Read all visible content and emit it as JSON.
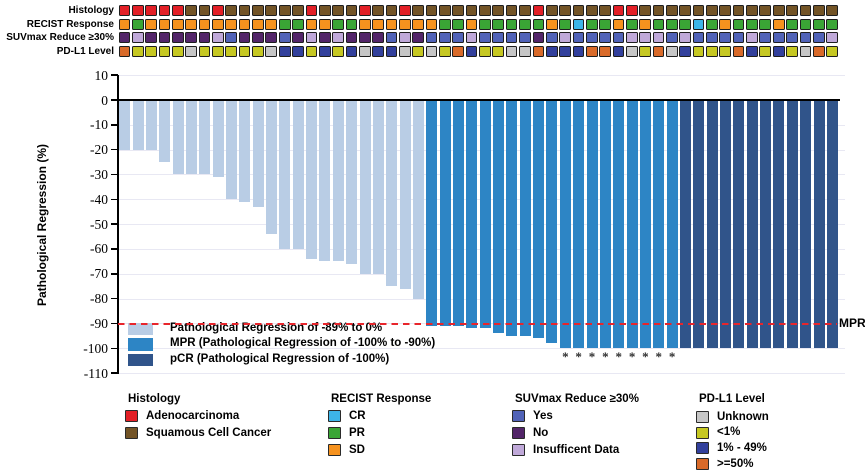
{
  "palette": {
    "adeno": "#e31f26",
    "squam": "#735426",
    "sd": "#f6921e",
    "pr": "#3aa535",
    "cr": "#3db5e8",
    "yes": "#5163b8",
    "no": "#532569",
    "insuf": "#c0a9d9",
    "unknown": "#c6c6c6",
    "lt1": "#c6c822",
    "p1_49": "#32409c",
    "ge50": "#d96a29",
    "bar_light": "#b9cde5",
    "bar_mpr": "#2d85c5",
    "bar_pcr": "#30548a",
    "ref_line": "#e8252b",
    "grid": "#e8e8f3",
    "axis": "#000000"
  },
  "annotation": {
    "tracks": [
      {
        "label": "Histology",
        "map": {
          "A": "adeno",
          "S": "squam"
        },
        "cells": "AAAAASSASSSSSSASSSASSASSSSSSSSSASSSSSAASSSSSSSSSSSSSSS"
      },
      {
        "label": "RECIST Response",
        "map": {
          "D": "sd",
          "P": "pr",
          "C": "cr"
        },
        "cells": "DPDDDDDDDDDDPPDDPPDDDDDDPPDPPPPPDPCPPDPDPPPCPDPPPDPPPP"
      },
      {
        "label": "SUVmax Reduce ≥30%",
        "map": {
          "Y": "yes",
          "N": "no",
          "I": "insuf"
        },
        "cells": "NINNNNNIYNNNYNININNNYINYYYIYYYYNYIYYYYIIIYIYYYYIYYYYYI"
      },
      {
        "label": "PD-L1 Level",
        "map": {
          "U": "unknown",
          "L": "lt1",
          "M": "p1_49",
          "H": "ge50"
        },
        "cells": "HLLLLULLLLLUMMLMLMUMMULULHMLLUUHMMMHHMULHUMLLLHMLMLUHL"
      }
    ]
  },
  "chart_data": {
    "type": "bar",
    "title": "",
    "xlabel": "",
    "ylabel": "Pathological Regression (%)",
    "ylim": [
      -110,
      10
    ],
    "yticks": [
      10,
      0,
      -10,
      -20,
      -30,
      -40,
      -50,
      -60,
      -70,
      -80,
      -90,
      -100,
      -110
    ],
    "grid": "horizontal-light",
    "reference_line": {
      "value": -90,
      "label": "MPR",
      "style": "red-dashed"
    },
    "asterisk_note": "asterisk markers under nine MPR bars reaching -100%",
    "bars": [
      {
        "v": -20,
        "c": "light"
      },
      {
        "v": -20,
        "c": "light"
      },
      {
        "v": -20,
        "c": "light"
      },
      {
        "v": -25,
        "c": "light"
      },
      {
        "v": -30,
        "c": "light"
      },
      {
        "v": -30,
        "c": "light"
      },
      {
        "v": -30,
        "c": "light"
      },
      {
        "v": -31,
        "c": "light"
      },
      {
        "v": -40,
        "c": "light"
      },
      {
        "v": -41,
        "c": "light"
      },
      {
        "v": -43,
        "c": "light"
      },
      {
        "v": -54,
        "c": "light"
      },
      {
        "v": -60,
        "c": "light"
      },
      {
        "v": -60,
        "c": "light"
      },
      {
        "v": -64,
        "c": "light"
      },
      {
        "v": -65,
        "c": "light"
      },
      {
        "v": -65,
        "c": "light"
      },
      {
        "v": -66,
        "c": "light"
      },
      {
        "v": -70,
        "c": "light"
      },
      {
        "v": -70,
        "c": "light"
      },
      {
        "v": -75,
        "c": "light"
      },
      {
        "v": -76,
        "c": "light"
      },
      {
        "v": -80,
        "c": "light"
      },
      {
        "v": -91,
        "c": "mpr"
      },
      {
        "v": -91,
        "c": "mpr"
      },
      {
        "v": -91,
        "c": "mpr"
      },
      {
        "v": -92,
        "c": "mpr"
      },
      {
        "v": -92,
        "c": "mpr"
      },
      {
        "v": -94,
        "c": "mpr"
      },
      {
        "v": -95,
        "c": "mpr"
      },
      {
        "v": -95,
        "c": "mpr"
      },
      {
        "v": -96,
        "c": "mpr"
      },
      {
        "v": -98,
        "c": "mpr"
      },
      {
        "v": -100,
        "c": "mpr",
        "m": "*"
      },
      {
        "v": -100,
        "c": "mpr",
        "m": "*"
      },
      {
        "v": -100,
        "c": "mpr",
        "m": "*"
      },
      {
        "v": -100,
        "c": "mpr",
        "m": "*"
      },
      {
        "v": -100,
        "c": "mpr",
        "m": "*"
      },
      {
        "v": -100,
        "c": "mpr",
        "m": "*"
      },
      {
        "v": -100,
        "c": "mpr",
        "m": "*"
      },
      {
        "v": -100,
        "c": "mpr",
        "m": "*"
      },
      {
        "v": -100,
        "c": "mpr",
        "m": "*"
      },
      {
        "v": -100,
        "c": "pcr"
      },
      {
        "v": -100,
        "c": "pcr"
      },
      {
        "v": -100,
        "c": "pcr"
      },
      {
        "v": -100,
        "c": "pcr"
      },
      {
        "v": -100,
        "c": "pcr"
      },
      {
        "v": -100,
        "c": "pcr"
      },
      {
        "v": -100,
        "c": "pcr"
      },
      {
        "v": -100,
        "c": "pcr"
      },
      {
        "v": -100,
        "c": "pcr"
      },
      {
        "v": -100,
        "c": "pcr"
      },
      {
        "v": -100,
        "c": "pcr"
      },
      {
        "v": -100,
        "c": "pcr"
      }
    ],
    "legend": [
      {
        "key": "bar_light",
        "label": "Pathological Regression of -89% to 0%"
      },
      {
        "key": "bar_mpr",
        "label": "MPR (Pathological Regression of -100% to -90%)"
      },
      {
        "key": "bar_pcr",
        "label": "pCR (Pathological Regression of -100%)"
      }
    ]
  },
  "bottom_legend": {
    "groups": [
      {
        "title": "Histology",
        "items": [
          {
            "key": "adeno",
            "label": "Adenocarcinoma"
          },
          {
            "key": "squam",
            "label": "Squamous Cell Cancer"
          }
        ]
      },
      {
        "title": "RECIST Response",
        "items": [
          {
            "key": "cr",
            "label": "CR"
          },
          {
            "key": "pr",
            "label": "PR"
          },
          {
            "key": "sd",
            "label": "SD"
          }
        ]
      },
      {
        "title": "SUVmax Reduce ≥30%",
        "items": [
          {
            "key": "yes",
            "label": "Yes"
          },
          {
            "key": "no",
            "label": "No"
          },
          {
            "key": "insuf",
            "label": "Insufficent Data"
          }
        ]
      },
      {
        "title": "PD-L1 Level",
        "items": [
          {
            "key": "unknown",
            "label": "Unknown"
          },
          {
            "key": "lt1",
            "label": "<1%"
          },
          {
            "key": "p1_49",
            "label": "1% - 49%"
          },
          {
            "key": "ge50",
            "label": ">=50%"
          }
        ]
      }
    ]
  }
}
